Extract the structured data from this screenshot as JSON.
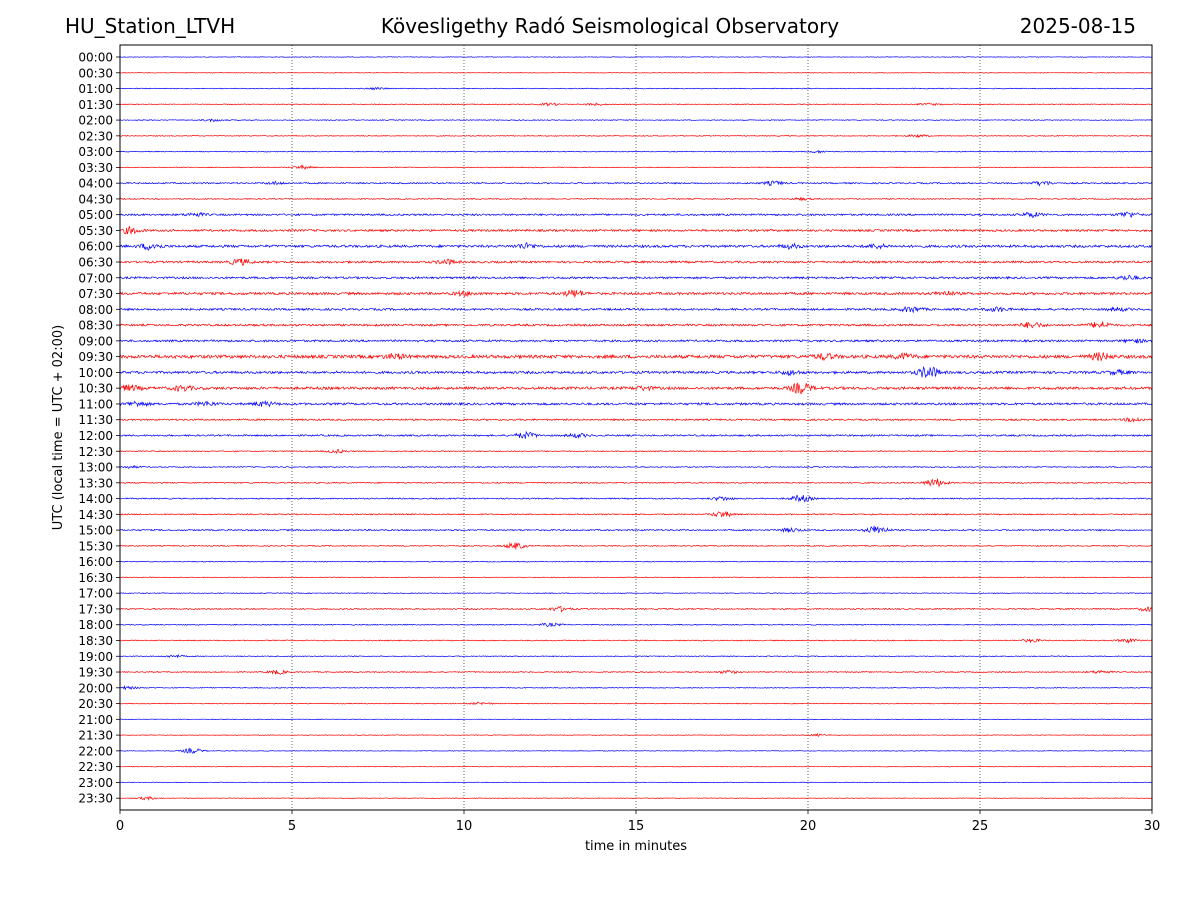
{
  "header": {
    "station": "HU_Station_LTVH",
    "observatory": "Kövesligethy Radó Seismological Observatory",
    "date": "2025-08-15"
  },
  "chart_data": {
    "type": "line",
    "title": "Kövesligethy Radó Seismological Observatory",
    "xlabel": "time in minutes",
    "ylabel": "UTC (local time = UTC + 02:00)",
    "xlim": [
      0,
      30
    ],
    "xticks": [
      0,
      5,
      10,
      15,
      20,
      25,
      30
    ],
    "vertical_gridlines_at": [
      5,
      10,
      15,
      20,
      25
    ],
    "grid": "vertical dotted at 5-minute intervals",
    "colors": {
      "hour_rows": "#0000ff",
      "half_hour_rows": "#ff0000"
    },
    "rows": [
      {
        "label": "00:00",
        "color": "#0000ff",
        "noise": 0.3,
        "bursts": []
      },
      {
        "label": "00:30",
        "color": "#ff0000",
        "noise": 0.3,
        "bursts": []
      },
      {
        "label": "01:00",
        "color": "#0000ff",
        "noise": 0.4,
        "bursts": [
          [
            7.5,
            1.0
          ]
        ]
      },
      {
        "label": "01:30",
        "color": "#ff0000",
        "noise": 0.4,
        "bursts": [
          [
            12.5,
            1.2
          ],
          [
            13.8,
            1.0
          ],
          [
            23.5,
            1.0
          ]
        ]
      },
      {
        "label": "02:00",
        "color": "#0000ff",
        "noise": 0.4,
        "bursts": [
          [
            2.7,
            1.2
          ]
        ]
      },
      {
        "label": "02:30",
        "color": "#ff0000",
        "noise": 0.4,
        "bursts": [
          [
            23.2,
            1.2
          ]
        ]
      },
      {
        "label": "03:00",
        "color": "#0000ff",
        "noise": 0.4,
        "bursts": [
          [
            20.3,
            1.0
          ]
        ]
      },
      {
        "label": "03:30",
        "color": "#ff0000",
        "noise": 0.4,
        "bursts": [
          [
            5.3,
            1.5
          ]
        ]
      },
      {
        "label": "04:00",
        "color": "#0000ff",
        "noise": 0.7,
        "bursts": [
          [
            4.5,
            1.2
          ],
          [
            19.0,
            1.8
          ],
          [
            26.8,
            2.0
          ]
        ]
      },
      {
        "label": "04:30",
        "color": "#ff0000",
        "noise": 0.5,
        "bursts": [
          [
            19.8,
            1.0
          ]
        ]
      },
      {
        "label": "05:00",
        "color": "#0000ff",
        "noise": 0.9,
        "bursts": [
          [
            2.2,
            1.5
          ],
          [
            26.5,
            2.2
          ],
          [
            29.3,
            2.5
          ]
        ]
      },
      {
        "label": "05:30",
        "color": "#ff0000",
        "noise": 1.0,
        "bursts": [
          [
            0.3,
            3.0
          ]
        ]
      },
      {
        "label": "06:00",
        "color": "#0000ff",
        "noise": 1.2,
        "bursts": [
          [
            0.9,
            3.2
          ],
          [
            11.8,
            2.5
          ],
          [
            19.5,
            1.8
          ],
          [
            22.0,
            1.8
          ]
        ]
      },
      {
        "label": "06:30",
        "color": "#ff0000",
        "noise": 1.0,
        "bursts": [
          [
            3.5,
            2.8
          ],
          [
            9.5,
            2.2
          ]
        ]
      },
      {
        "label": "07:00",
        "color": "#0000ff",
        "noise": 1.0,
        "bursts": [
          [
            29.3,
            2.0
          ]
        ]
      },
      {
        "label": "07:30",
        "color": "#ff0000",
        "noise": 1.2,
        "bursts": [
          [
            13.2,
            3.2
          ],
          [
            10.0,
            1.8
          ],
          [
            24.0,
            1.8
          ]
        ]
      },
      {
        "label": "08:00",
        "color": "#0000ff",
        "noise": 1.0,
        "bursts": [
          [
            23.0,
            2.5
          ],
          [
            25.5,
            1.8
          ],
          [
            29.0,
            1.5
          ]
        ]
      },
      {
        "label": "08:30",
        "color": "#ff0000",
        "noise": 1.0,
        "bursts": [
          [
            26.5,
            2.8
          ],
          [
            28.5,
            3.0
          ]
        ]
      },
      {
        "label": "09:00",
        "color": "#0000ff",
        "noise": 1.0,
        "bursts": [
          [
            29.5,
            1.5
          ]
        ]
      },
      {
        "label": "09:30",
        "color": "#ff0000",
        "noise": 1.6,
        "bursts": [
          [
            8.0,
            2.2
          ],
          [
            20.5,
            2.5
          ],
          [
            22.8,
            2.2
          ],
          [
            28.5,
            3.2
          ]
        ]
      },
      {
        "label": "10:00",
        "color": "#0000ff",
        "noise": 1.2,
        "bursts": [
          [
            23.5,
            6.0
          ],
          [
            19.5,
            2.0
          ],
          [
            29.0,
            1.8
          ]
        ]
      },
      {
        "label": "10:30",
        "color": "#ff0000",
        "noise": 1.3,
        "bursts": [
          [
            0.3,
            2.5
          ],
          [
            1.8,
            2.2
          ],
          [
            19.8,
            5.0
          ],
          [
            15.2,
            1.5
          ]
        ]
      },
      {
        "label": "11:00",
        "color": "#0000ff",
        "noise": 1.1,
        "bursts": [
          [
            0.5,
            2.2
          ],
          [
            4.2,
            2.0
          ],
          [
            2.5,
            1.8
          ]
        ]
      },
      {
        "label": "11:30",
        "color": "#ff0000",
        "noise": 0.8,
        "bursts": [
          [
            29.5,
            1.8
          ]
        ]
      },
      {
        "label": "12:00",
        "color": "#0000ff",
        "noise": 0.8,
        "bursts": [
          [
            11.8,
            3.0
          ],
          [
            13.3,
            1.8
          ]
        ]
      },
      {
        "label": "12:30",
        "color": "#ff0000",
        "noise": 0.5,
        "bursts": [
          [
            6.3,
            1.5
          ]
        ]
      },
      {
        "label": "13:00",
        "color": "#0000ff",
        "noise": 0.5,
        "bursts": [
          [
            0.3,
            1.0
          ]
        ]
      },
      {
        "label": "13:30",
        "color": "#ff0000",
        "noise": 0.6,
        "bursts": [
          [
            23.7,
            3.8
          ]
        ]
      },
      {
        "label": "14:00",
        "color": "#0000ff",
        "noise": 0.6,
        "bursts": [
          [
            19.8,
            3.2
          ],
          [
            17.5,
            1.8
          ]
        ]
      },
      {
        "label": "14:30",
        "color": "#ff0000",
        "noise": 0.6,
        "bursts": [
          [
            17.5,
            2.8
          ]
        ]
      },
      {
        "label": "15:00",
        "color": "#0000ff",
        "noise": 0.7,
        "bursts": [
          [
            22.0,
            4.2
          ],
          [
            19.5,
            1.8
          ]
        ]
      },
      {
        "label": "15:30",
        "color": "#ff0000",
        "noise": 0.5,
        "bursts": [
          [
            11.5,
            3.2
          ]
        ]
      },
      {
        "label": "16:00",
        "color": "#0000ff",
        "noise": 0.4,
        "bursts": []
      },
      {
        "label": "16:30",
        "color": "#ff0000",
        "noise": 0.4,
        "bursts": []
      },
      {
        "label": "17:00",
        "color": "#0000ff",
        "noise": 0.4,
        "bursts": []
      },
      {
        "label": "17:30",
        "color": "#ff0000",
        "noise": 0.6,
        "bursts": [
          [
            12.8,
            2.2
          ],
          [
            29.9,
            2.0
          ]
        ]
      },
      {
        "label": "18:00",
        "color": "#0000ff",
        "noise": 0.5,
        "bursts": [
          [
            12.5,
            1.5
          ]
        ]
      },
      {
        "label": "18:30",
        "color": "#ff0000",
        "noise": 0.5,
        "bursts": [
          [
            29.3,
            1.8
          ],
          [
            26.5,
            1.4
          ]
        ]
      },
      {
        "label": "19:00",
        "color": "#0000ff",
        "noise": 0.4,
        "bursts": [
          [
            1.6,
            1.2
          ]
        ]
      },
      {
        "label": "19:30",
        "color": "#ff0000",
        "noise": 0.5,
        "bursts": [
          [
            4.6,
            1.8
          ],
          [
            17.7,
            1.5
          ],
          [
            28.5,
            1.5
          ]
        ]
      },
      {
        "label": "20:00",
        "color": "#0000ff",
        "noise": 0.4,
        "bursts": [
          [
            0.2,
            1.4
          ]
        ]
      },
      {
        "label": "20:30",
        "color": "#ff0000",
        "noise": 0.4,
        "bursts": [
          [
            10.5,
            1.2
          ]
        ]
      },
      {
        "label": "21:00",
        "color": "#0000ff",
        "noise": 0.3,
        "bursts": []
      },
      {
        "label": "21:30",
        "color": "#ff0000",
        "noise": 0.3,
        "bursts": [
          [
            20.3,
            1.0
          ]
        ]
      },
      {
        "label": "22:00",
        "color": "#0000ff",
        "noise": 0.3,
        "bursts": [
          [
            2.1,
            2.5
          ]
        ]
      },
      {
        "label": "22:30",
        "color": "#ff0000",
        "noise": 0.3,
        "bursts": []
      },
      {
        "label": "23:00",
        "color": "#0000ff",
        "noise": 0.3,
        "bursts": []
      },
      {
        "label": "23:30",
        "color": "#ff0000",
        "noise": 0.3,
        "bursts": [
          [
            0.8,
            1.3
          ]
        ]
      }
    ]
  }
}
